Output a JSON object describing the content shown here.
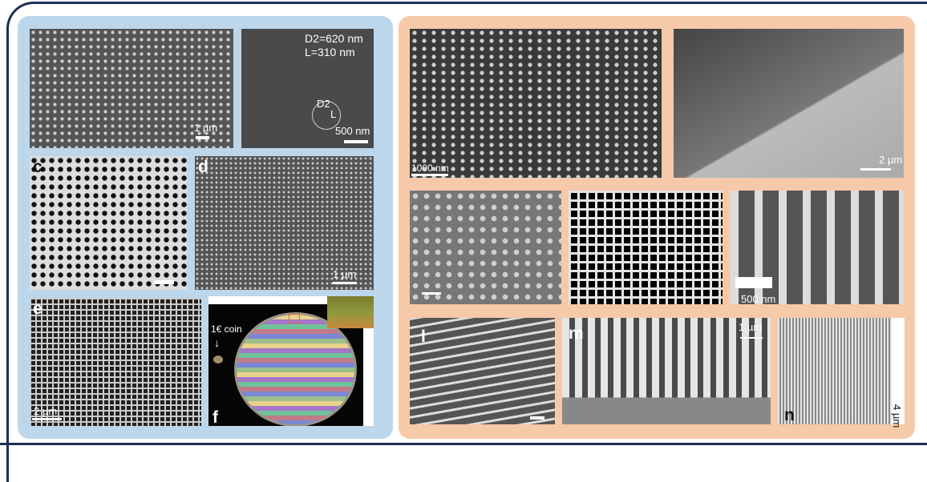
{
  "panels_left": {
    "a": {
      "scale": "1 µm"
    },
    "b": {
      "annotation_d2": "D2=620 nm",
      "annotation_l": "L=310 nm",
      "diagram_d2": "D2",
      "diagram_l": "L",
      "scale": "500 nm"
    },
    "c": {
      "label": "c"
    },
    "d": {
      "label": "d",
      "scale": "1 µm"
    },
    "e": {
      "label": "e",
      "scale": "2 µm"
    },
    "f": {
      "label": "f",
      "coin": "1€ coin"
    }
  },
  "panels_right": {
    "top_left": {
      "scale": "1000 nm"
    },
    "top_right": {
      "scale": "2 µm"
    },
    "mid_right": {
      "scale": "500 nm"
    },
    "l": {
      "label": "l"
    },
    "m": {
      "label": "m",
      "scale": "1 µm"
    },
    "n": {
      "label": "n",
      "scale": "4 µm"
    }
  },
  "colors": {
    "left_group": "#bcd7ec",
    "right_group": "#f6c9a9",
    "frame": "#1d2f55"
  }
}
